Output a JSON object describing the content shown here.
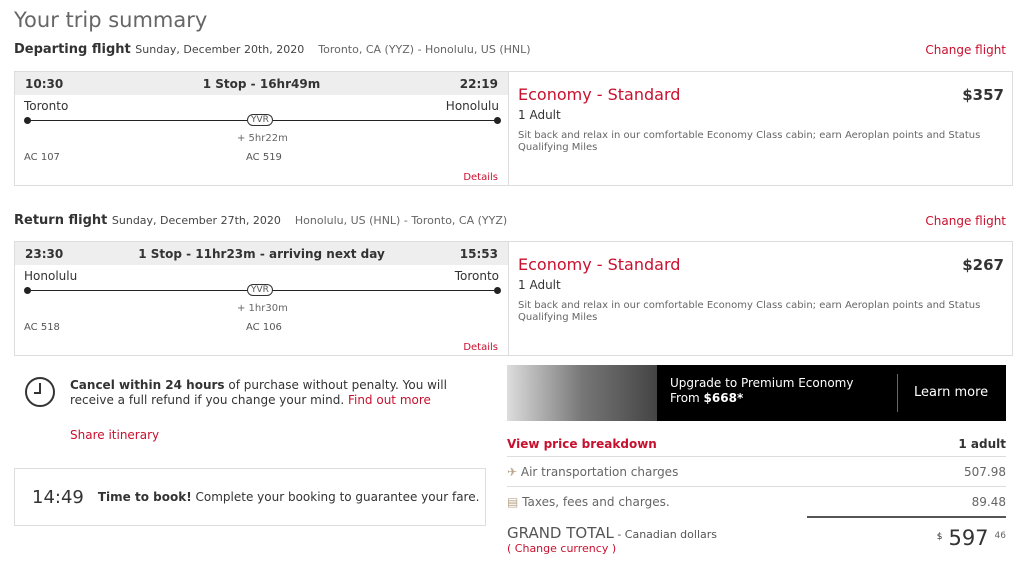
{
  "page_title": "Your trip summary",
  "flights": [
    {
      "label": "Departing flight",
      "date": "Sunday, December 20th, 2020",
      "route": "Toronto, CA (YYZ) - Honolulu, US (HNL)",
      "change": "Change flight",
      "depart_time": "10:30",
      "arrive_time": "22:19",
      "summary": "1 Stop - 16hr49m",
      "origin": "Toronto",
      "destination": "Honolulu",
      "stop": "YVR",
      "layover": "+ 5hr22m",
      "flight1": "AC 107",
      "flight2": "AC 519",
      "details": "Details",
      "cabin": "Economy - Standard",
      "price": "$357",
      "pax": "1 Adult",
      "description": "Sit back and relax in our comfortable Economy Class cabin; earn Aeroplan points and Status Qualifying Miles"
    },
    {
      "label": "Return flight",
      "date": "Sunday, December 27th, 2020",
      "route": "Honolulu, US (HNL) - Toronto, CA (YYZ)",
      "change": "Change flight",
      "depart_time": "23:30",
      "arrive_time": "15:53",
      "summary": "1 Stop - 11hr23m - arriving next day",
      "origin": "Honolulu",
      "destination": "Toronto",
      "stop": "YVR",
      "layover": "+ 1hr30m",
      "flight1": "AC 518",
      "flight2": "AC 106",
      "details": "Details",
      "cabin": "Economy - Standard",
      "price": "$267",
      "pax": "1 Adult",
      "description": "Sit back and relax in our comfortable Economy Class cabin; earn Aeroplan points and Status Qualifying Miles"
    }
  ],
  "cancel": {
    "bold": "Cancel within 24 hours",
    "text": " of purchase without penalty. You will receive a full refund if you change your mind. ",
    "link": "Find out more",
    "icon": "clock-icon"
  },
  "share": "Share itinerary",
  "timer": {
    "time": "14:49",
    "bold": "Time to book!",
    "text": " Complete your booking to guarantee your fare."
  },
  "upgrade": {
    "title": "Upgrade to Premium Economy",
    "from": "From ",
    "price": "$668*",
    "button": "Learn more"
  },
  "breakdown": {
    "link": "View price breakdown",
    "pax": "1 adult",
    "rows": [
      {
        "icon": "plane-icon",
        "label": "Air transportation charges",
        "value": "507.98"
      },
      {
        "icon": "receipt-icon",
        "label": "Taxes, fees and charges.",
        "value": "89.48"
      }
    ]
  },
  "total": {
    "label": "GRAND TOTAL",
    "currency": " - Canadian dollars",
    "change": "( Change currency )",
    "symbol": "$",
    "whole": "597",
    "cents": "46"
  }
}
